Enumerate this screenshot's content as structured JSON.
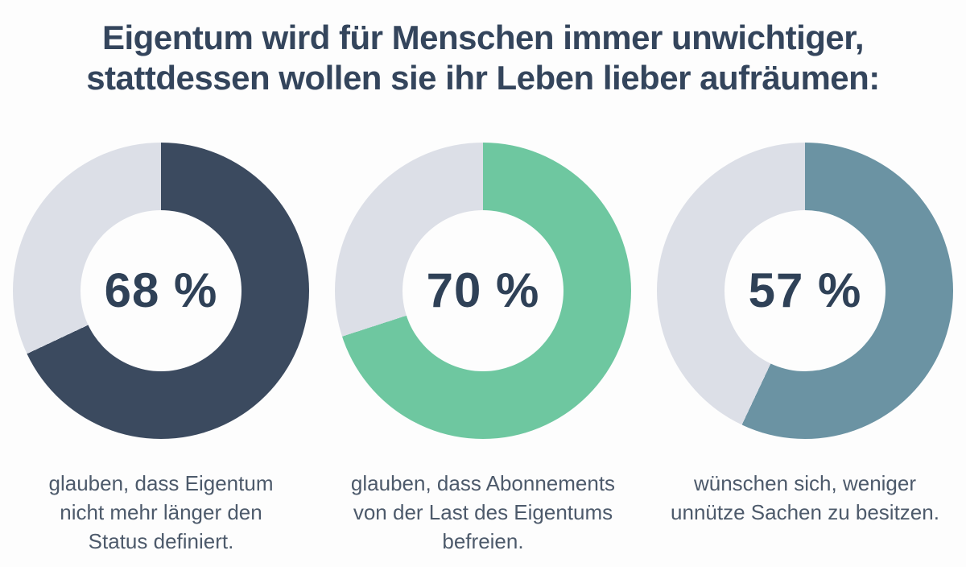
{
  "title": {
    "line1": "Eigentum wird für Menschen immer unwichtiger,",
    "line2": "stattdessen wollen sie ihr Leben lieber aufräumen:"
  },
  "colors": {
    "background": "#fdfdfd",
    "title_text": "#34455c",
    "caption_text": "#4d5a6b",
    "percent_text": "#2f4157",
    "track_gray": "#dcdfe7",
    "dark_navy": "#3b4a5f",
    "green": "#6ec7a0",
    "slate_teal": "#6b93a3"
  },
  "chart_data": {
    "type": "pie",
    "variant": "donut",
    "start_angle_deg": 0,
    "direction": "clockwise",
    "legend": "none",
    "charts": [
      {
        "label": "68 %",
        "value": 68,
        "remainder": 32,
        "color": "#3b4a5f",
        "track_color": "#dcdfe7",
        "caption": "glauben, dass Eigentum nicht mehr länger den Status definiert.",
        "caption_lines": {
          "l1": "glauben, dass Eigentum",
          "l2": "nicht mehr länger den",
          "l3": "Status definiert."
        }
      },
      {
        "label": "70 %",
        "value": 70,
        "remainder": 30,
        "color": "#6ec7a0",
        "track_color": "#dcdfe7",
        "caption": "glauben, dass Abonnements von der Last des Eigentums befreien.",
        "caption_lines": {
          "l1": "glauben, dass Abonnements",
          "l2": "von der Last des Eigentums",
          "l3": "befreien."
        }
      },
      {
        "label": "57 %",
        "value": 57,
        "remainder": 43,
        "color": "#6b93a3",
        "track_color": "#dcdfe7",
        "caption": "wünschen sich, weniger unnütze Sachen zu besitzen.",
        "caption_lines": {
          "l1": "wünschen sich, weniger",
          "l2": "unnütze Sachen zu besitzen.",
          "l3": ""
        }
      }
    ]
  }
}
